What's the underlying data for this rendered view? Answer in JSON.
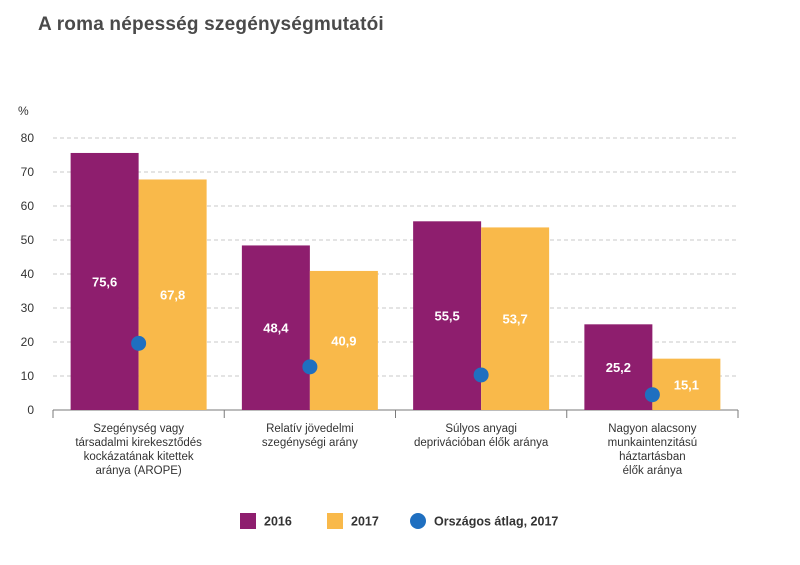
{
  "chart_data": {
    "type": "bar",
    "title": "A roma népesség szegénységmutatói",
    "ylabel": "%",
    "ylim": [
      0,
      80
    ],
    "yticks": [
      0,
      10,
      20,
      30,
      40,
      50,
      60,
      70,
      80
    ],
    "grid": true,
    "legend_position": "bottom",
    "categories": [
      [
        "Szegénység vagy",
        "társadalmi kirekesztődés",
        "kockázatának kitettek",
        "aránya (AROPE)"
      ],
      [
        "Relatív jövedelmi",
        "szegénységi arány"
      ],
      [
        "Súlyos anyagi",
        "deprivációban élők aránya"
      ],
      [
        "Nagyon alacsony",
        "munkaintenzitású",
        "háztartásban",
        "élők aránya"
      ]
    ],
    "series": [
      {
        "name": "2016",
        "color": "#8e1e6e",
        "values": [
          75.6,
          48.4,
          55.5,
          25.2
        ],
        "labels": [
          "75,6",
          "48,4",
          "55,5",
          "25,2"
        ]
      },
      {
        "name": "2017",
        "color": "#f9b94a",
        "values": [
          67.8,
          40.9,
          53.7,
          15.1
        ],
        "labels": [
          "67,8",
          "40,9",
          "53,7",
          "15,1"
        ]
      }
    ],
    "markers": {
      "name": "Országos átlag, 2017",
      "color": "#1f6fc0",
      "values": [
        19.6,
        12.7,
        10.3,
        4.5
      ]
    }
  }
}
